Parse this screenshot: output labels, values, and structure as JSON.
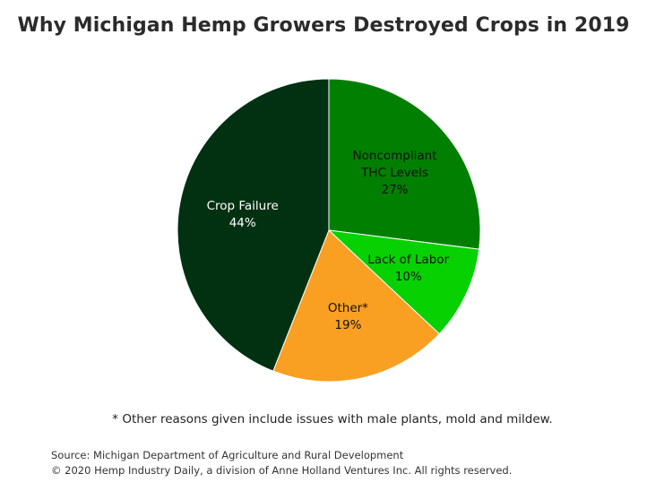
{
  "chart_data": {
    "type": "pie",
    "title": "Why Michigan Hemp Growers Destroyed Crops in 2019",
    "slices": [
      {
        "label_lines": [
          "Noncompliant",
          "THC Levels"
        ],
        "percent_label": "27%",
        "value": 27,
        "color": "#017f01",
        "label_color": "#111111"
      },
      {
        "label_lines": [
          "Lack of Labor"
        ],
        "percent_label": "10%",
        "value": 10,
        "color": "#07d101",
        "label_color": "#111111"
      },
      {
        "label_lines": [
          "Other*"
        ],
        "percent_label": "19%",
        "value": 19,
        "color": "#f99f22",
        "label_color": "#111111"
      },
      {
        "label_lines": [
          "Crop Failure"
        ],
        "percent_label": "44%",
        "value": 44,
        "color": "#013111",
        "label_color": "#ffffff"
      }
    ],
    "start_angle_deg": 0,
    "direction": "clockwise"
  },
  "footnote": "* Other reasons given include issues with male plants, mold and mildew.",
  "source": {
    "line1": "Source: Michigan Department of Agriculture and Rural Development",
    "line2": "© 2020 Hemp Industry Daily, a division of Anne Holland Ventures Inc. All rights reserved."
  }
}
